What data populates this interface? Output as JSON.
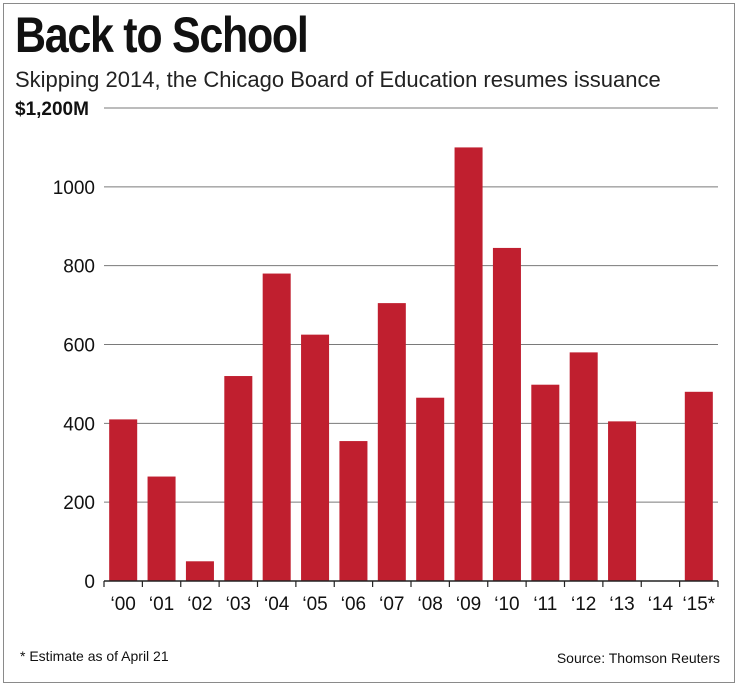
{
  "chart_data": {
    "type": "bar",
    "title": "Back to School",
    "subtitle": "Skipping 2014, the Chicago Board of Education resumes issuance",
    "top_tick_label": "$1,200M",
    "categories": [
      "‘00",
      "‘01",
      "‘02",
      "‘03",
      "‘04",
      "‘05",
      "‘06",
      "‘07",
      "‘08",
      "‘09",
      "‘10",
      "‘11",
      "‘12",
      "‘13",
      "‘14",
      "‘15*"
    ],
    "values": [
      410,
      265,
      50,
      520,
      780,
      625,
      355,
      705,
      465,
      1100,
      845,
      498,
      580,
      405,
      0,
      480
    ],
    "ylim": [
      0,
      1200
    ],
    "y_ticks": [
      0,
      200,
      400,
      600,
      800,
      1000,
      1200
    ],
    "y_tick_labels": [
      "0",
      "200",
      "400",
      "600",
      "800",
      "1000",
      "$1,200M"
    ],
    "grid": true,
    "bar_color": "#c01f2f",
    "footnote": "* Estimate as of April 21",
    "source": "Source: Thomson Reuters"
  }
}
